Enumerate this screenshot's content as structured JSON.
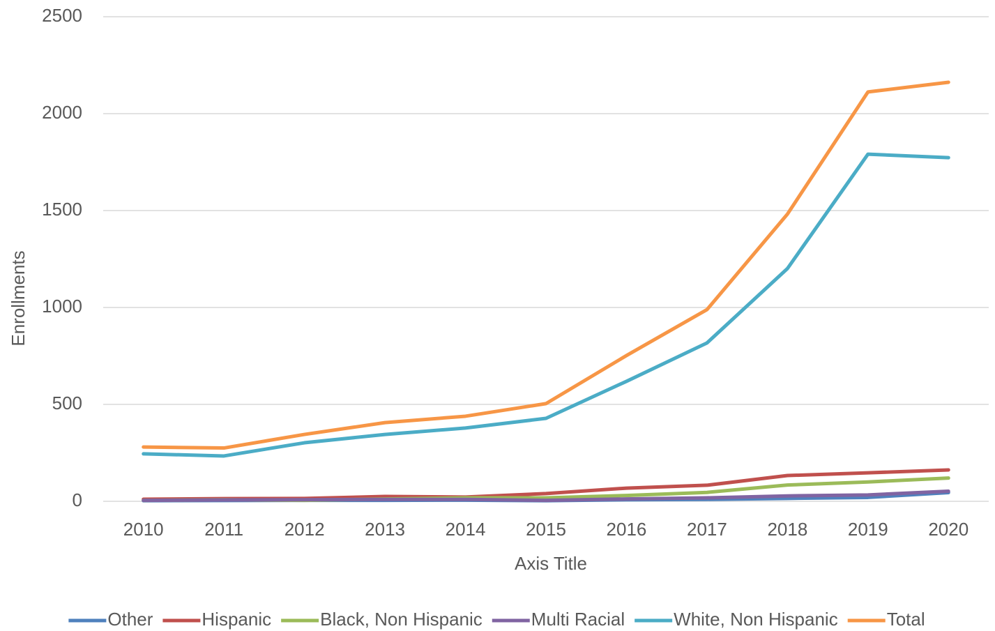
{
  "chart_data": {
    "type": "line",
    "y_label": "Enrollments",
    "x_label": "Axis Title",
    "categories": [
      "2010",
      "2011",
      "2012",
      "2013",
      "2014",
      "2015",
      "2016",
      "2017",
      "2018",
      "2019",
      "2020"
    ],
    "series": [
      {
        "name": "Other",
        "color": "#4f81bd",
        "values": [
          3,
          4,
          5,
          5,
          6,
          3,
          8,
          10,
          15,
          20,
          45
        ]
      },
      {
        "name": "Hispanic",
        "color": "#c0504d",
        "values": [
          11,
          14,
          15,
          25,
          22,
          40,
          68,
          83,
          133,
          147,
          162
        ]
      },
      {
        "name": "Black, Non Hispanic",
        "color": "#9bbb59",
        "values": [
          5,
          8,
          5,
          12,
          18,
          18,
          30,
          46,
          84,
          100,
          120
        ]
      },
      {
        "name": "Multi Racial",
        "color": "#8064a2",
        "values": [
          5,
          7,
          8,
          10,
          10,
          5,
          12,
          18,
          28,
          33,
          52
        ]
      },
      {
        "name": "White, Non Hispanic",
        "color": "#4bacc6",
        "values": [
          245,
          234,
          302,
          345,
          378,
          428,
          619,
          817,
          1201,
          1791,
          1773
        ]
      },
      {
        "name": "Total",
        "color": "#f79646",
        "values": [
          280,
          275,
          345,
          406,
          439,
          504,
          752,
          989,
          1482,
          2112,
          2162
        ]
      }
    ],
    "ylim": [
      0,
      2500
    ],
    "yticks": [
      0,
      500,
      1000,
      1500,
      2000,
      2500
    ],
    "grid": true,
    "legend": "bottom"
  }
}
